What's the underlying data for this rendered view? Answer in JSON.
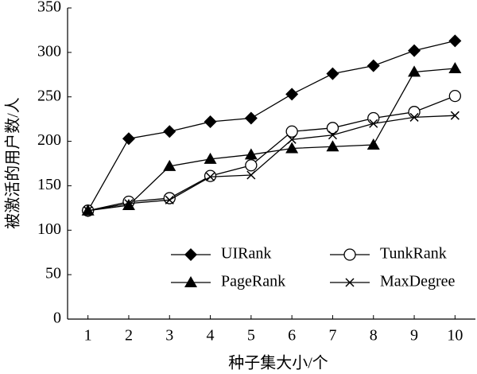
{
  "chart_data": {
    "type": "line",
    "x_label": "种子集大小/个",
    "y_label": "被激活的用户数/人",
    "categories": [
      "1",
      "2",
      "3",
      "4",
      "5",
      "6",
      "7",
      "8",
      "9",
      "10"
    ],
    "ylim": [
      0,
      350
    ],
    "yticks": [
      0,
      50,
      100,
      150,
      200,
      250,
      300,
      350
    ],
    "grid": false,
    "legend": "lower right",
    "series": [
      {
        "name": "UIRank",
        "color": "#000000",
        "marker": "diamond",
        "values": [
          122,
          203,
          211,
          222,
          226,
          253,
          276,
          285,
          302,
          313
        ]
      },
      {
        "name": "TunkRank",
        "color": "#000000",
        "marker": "circle",
        "values": [
          122,
          132,
          136,
          161,
          173,
          211,
          215,
          226,
          233,
          251
        ]
      },
      {
        "name": "PageRank",
        "color": "#000000",
        "marker": "triangle",
        "values": [
          122,
          128,
          172,
          180,
          185,
          192,
          194,
          196,
          278,
          282
        ]
      },
      {
        "name": "MaxDegree",
        "color": "#000000",
        "marker": "x",
        "values": [
          122,
          130,
          134,
          160,
          162,
          202,
          207,
          220,
          227,
          229
        ]
      }
    ]
  }
}
